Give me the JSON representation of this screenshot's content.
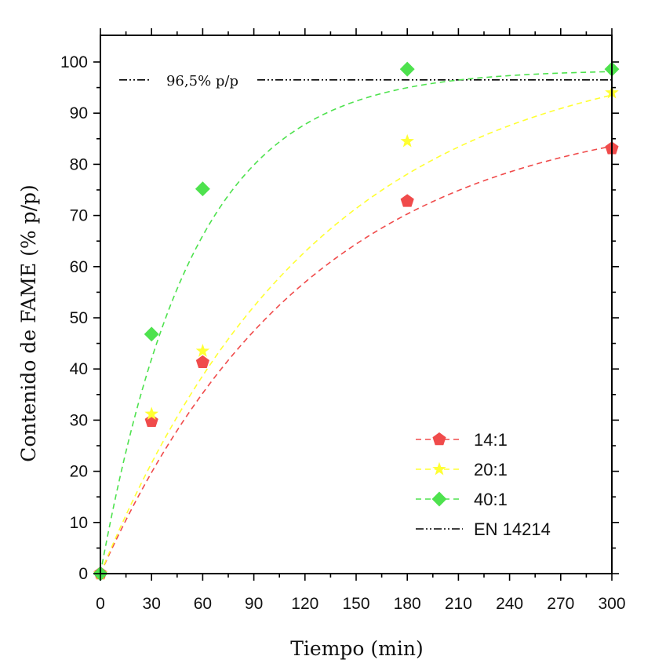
{
  "chart_data": {
    "type": "scatter",
    "xlabel": "Tiempo (min)",
    "ylabel": "Contenido de FAME (% p/p)",
    "xlim": [
      0,
      300
    ],
    "ylim": [
      0,
      105
    ],
    "xticks": [
      0,
      30,
      60,
      90,
      120,
      150,
      180,
      210,
      240,
      270,
      300
    ],
    "yticks": [
      0,
      10,
      20,
      30,
      40,
      50,
      60,
      70,
      80,
      90,
      100
    ],
    "grid": false,
    "legend_position": "bottom-right",
    "series": [
      {
        "name": "14:1",
        "marker": "pentagon",
        "color": "#f04b4b",
        "x": [
          0,
          30,
          60,
          180,
          300
        ],
        "y": [
          0,
          29.8,
          41.3,
          72.8,
          83.1
        ],
        "fit": {
          "a": 91.6,
          "k": 0.0081
        }
      },
      {
        "name": "20:1",
        "marker": "star",
        "color": "#ffff33",
        "x": [
          0,
          30,
          60,
          180,
          300
        ],
        "y": [
          0,
          31.2,
          43.5,
          84.5,
          94.0
        ],
        "fit": {
          "a": 103.5,
          "k": 0.0078
        }
      },
      {
        "name": "40:1",
        "marker": "diamond",
        "color": "#4ee24e",
        "x": [
          0,
          30,
          60,
          180,
          300
        ],
        "y": [
          0,
          46.8,
          75.2,
          98.6,
          98.6
        ],
        "fit": {
          "a": 98.5,
          "k": 0.0185
        }
      }
    ],
    "reference_line": {
      "name": "EN 14214",
      "y": 96.5,
      "label": "96,5% p/p"
    }
  }
}
